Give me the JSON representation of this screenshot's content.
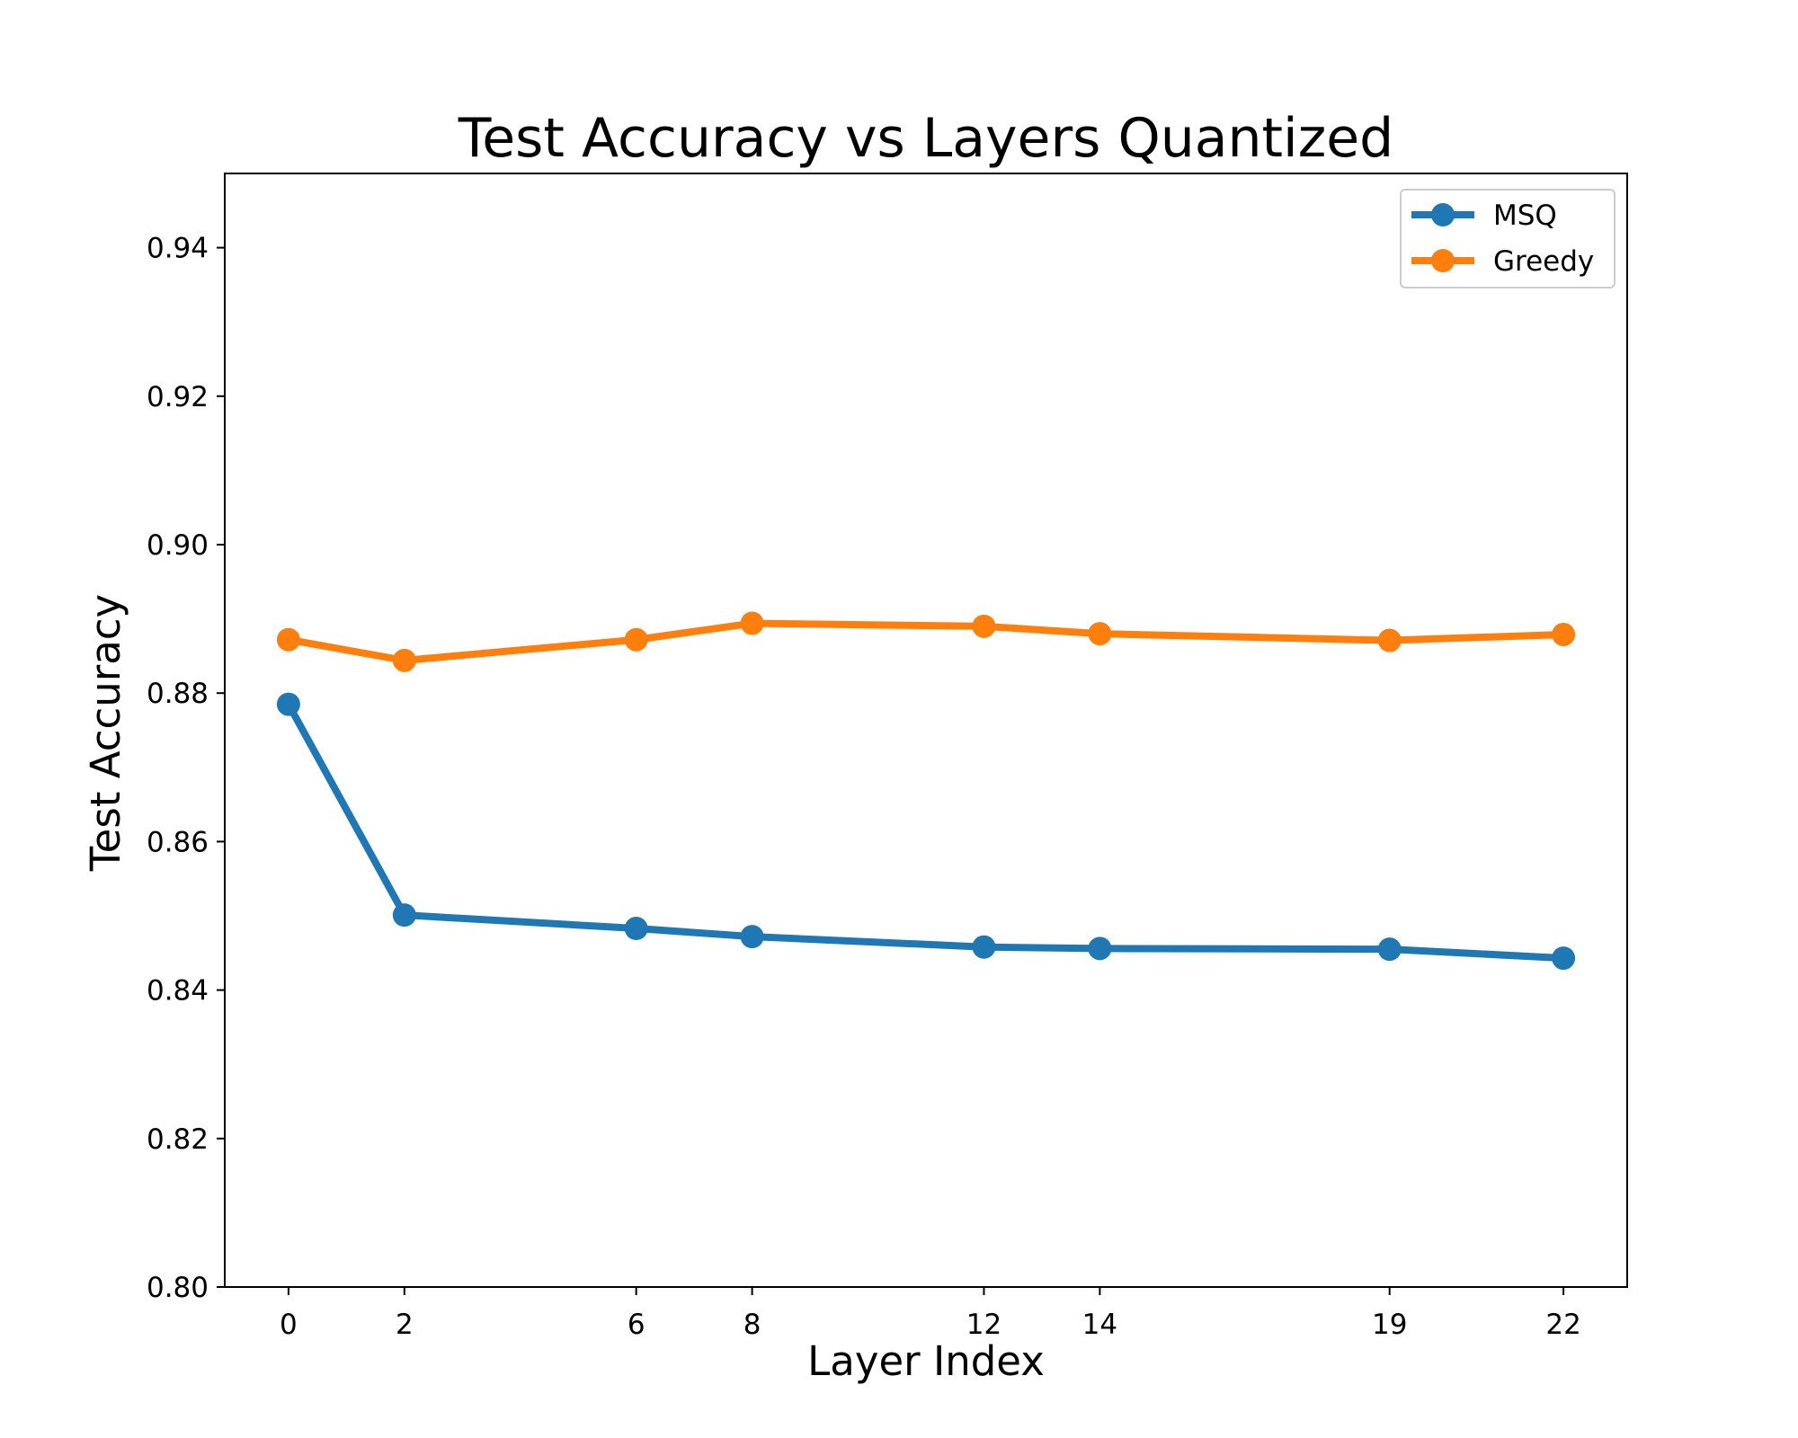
{
  "chart_data": {
    "type": "line",
    "title": "Test Accuracy vs Layers Quantized",
    "xlabel": "Layer Index",
    "ylabel": "Test Accuracy",
    "x": [
      0,
      2,
      6,
      8,
      12,
      14,
      19,
      22
    ],
    "x_tick_labels": [
      "0",
      "2",
      "6",
      "8",
      "12",
      "14",
      "19",
      "22"
    ],
    "xlim": [
      -1.1,
      23.1
    ],
    "ylim": [
      0.8,
      0.95
    ],
    "y_ticks": [
      0.8,
      0.82,
      0.84,
      0.86,
      0.88,
      0.9,
      0.92,
      0.94
    ],
    "y_tick_labels": [
      "0.80",
      "0.82",
      "0.84",
      "0.86",
      "0.88",
      "0.90",
      "0.92",
      "0.94"
    ],
    "grid": false,
    "legend_position": "top-right",
    "series": [
      {
        "name": "MSQ",
        "color": "#1f77b4",
        "marker": "circle",
        "values": [
          0.8785,
          0.8501,
          0.8483,
          0.8472,
          0.8458,
          0.8456,
          0.8455,
          0.8443
        ]
      },
      {
        "name": "Greedy",
        "color": "#ff7f0e",
        "marker": "circle",
        "values": [
          0.8872,
          0.8844,
          0.8872,
          0.8894,
          0.889,
          0.888,
          0.8871,
          0.8879
        ]
      }
    ]
  }
}
